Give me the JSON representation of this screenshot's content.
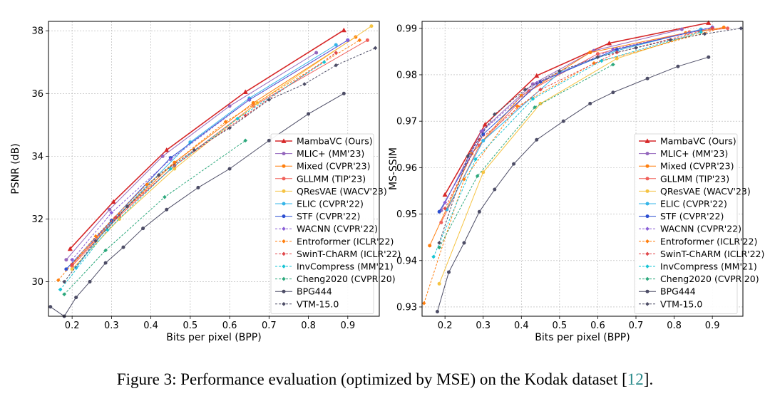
{
  "caption": {
    "prefix": "Figure 3: Performance evaluation (optimized by MSE) on the Kodak dataset [",
    "ref": "12",
    "suffix": "]."
  },
  "legend_series": [
    {
      "name": "MambaVC (Ours)",
      "color": "#d62728",
      "marker": "triangle",
      "dashed": false
    },
    {
      "name": "MLIC+ (MM'23)",
      "color": "#9467bd",
      "marker": "circle",
      "dashed": false
    },
    {
      "name": "Mixed (CVPR'23)",
      "color": "#ff7f0e",
      "marker": "circle",
      "dashed": false
    },
    {
      "name": "GLLMM (TIP'23)",
      "color": "#f0605a",
      "marker": "circle",
      "dashed": false
    },
    {
      "name": "QResVAE (WACV'23)",
      "color": "#f5c342",
      "marker": "circle",
      "dashed": false
    },
    {
      "name": "ELIC (CVPR'22)",
      "color": "#36b5e8",
      "marker": "circle",
      "dashed": false
    },
    {
      "name": "STF (CVPR'22)",
      "color": "#2c4fd1",
      "marker": "circle",
      "dashed": false
    },
    {
      "name": "WACNN (CVPR'22)",
      "color": "#8a5fd6",
      "marker": "diamond",
      "dashed": true
    },
    {
      "name": "Entroformer (ICLR'22)",
      "color": "#ff7f0e",
      "marker": "diamond",
      "dashed": true
    },
    {
      "name": "SwinT-ChARM (ICLR'22)",
      "color": "#e0484c",
      "marker": "diamond",
      "dashed": true
    },
    {
      "name": "InvCompress (MM'21)",
      "color": "#17c4d4",
      "marker": "diamond",
      "dashed": true
    },
    {
      "name": "Cheng2020 (CVPR'20)",
      "color": "#2ca87c",
      "marker": "diamond",
      "dashed": true
    },
    {
      "name": "BPG444",
      "color": "#4d4d66",
      "marker": "circle",
      "dashed": false
    },
    {
      "name": "VTM-15.0",
      "color": "#4d4d66",
      "marker": "diamond",
      "dashed": true
    }
  ],
  "chart_data": [
    {
      "type": "line",
      "xlabel": "Bits per pixel (BPP)",
      "ylabel": "PSNR (dB)",
      "xlim": [
        0.14,
        0.98
      ],
      "ylim": [
        28.9,
        38.3
      ],
      "xticks": [
        0.2,
        0.3,
        0.4,
        0.5,
        0.6,
        0.7,
        0.8,
        0.9
      ],
      "yticks": [
        30,
        32,
        34,
        36,
        38
      ],
      "grid": true,
      "legend_position": "bottom-right",
      "series": [
        {
          "name": "MambaVC (Ours)",
          "x": [
            0.195,
            0.305,
            0.44,
            0.64,
            0.89
          ],
          "y": [
            31.05,
            32.55,
            34.2,
            36.05,
            38.02
          ]
        },
        {
          "name": "MLIC+ (MM'23)",
          "x": [
            0.185,
            0.295,
            0.43,
            0.6,
            0.82
          ],
          "y": [
            30.7,
            32.3,
            34.0,
            35.6,
            37.3
          ]
        },
        {
          "name": "Mixed (CVPR'23)",
          "x": [
            0.2,
            0.32,
            0.46,
            0.66,
            0.92
          ],
          "y": [
            30.55,
            32.15,
            33.8,
            35.7,
            37.8
          ]
        },
        {
          "name": "GLLMM (TIP'23)",
          "x": [
            0.2,
            0.32,
            0.46,
            0.66,
            0.95
          ],
          "y": [
            30.5,
            32.1,
            33.7,
            35.6,
            37.7
          ]
        },
        {
          "name": "QResVAE (WACV'23)",
          "x": [
            0.2,
            0.32,
            0.46,
            0.67,
            0.96
          ],
          "y": [
            30.4,
            32.0,
            33.6,
            35.7,
            38.15
          ]
        },
        {
          "name": "ELIC (CVPR'22)",
          "x": [
            0.21,
            0.3,
            0.5,
            0.65,
            0.87
          ],
          "y": [
            30.45,
            31.9,
            34.45,
            35.85,
            37.55
          ]
        },
        {
          "name": "STF (CVPR'22)",
          "x": [
            0.185,
            0.3,
            0.45,
            0.65,
            0.9
          ],
          "y": [
            30.4,
            31.95,
            33.95,
            35.8,
            37.7
          ]
        },
        {
          "name": "WACNN (CVPR'22)",
          "x": [
            0.2,
            0.3,
            0.45,
            0.65,
            0.9
          ],
          "y": [
            30.7,
            32.2,
            33.9,
            35.8,
            37.7
          ]
        },
        {
          "name": "Entroformer (ICLR'22)",
          "x": [
            0.165,
            0.26,
            0.39,
            0.59,
            0.93
          ],
          "y": [
            30.05,
            31.45,
            33.1,
            35.1,
            37.7
          ]
        },
        {
          "name": "SwinT-ChARM (ICLR'22)",
          "x": [
            0.2,
            0.31,
            0.46,
            0.64,
            0.87
          ],
          "y": [
            30.55,
            32.05,
            33.7,
            35.3,
            37.3
          ]
        },
        {
          "name": "InvCompress (MM'21)",
          "x": [
            0.17,
            0.29,
            0.45,
            0.62,
            0.84
          ],
          "y": [
            29.75,
            31.65,
            33.6,
            35.2,
            37.0
          ]
        },
        {
          "name": "Cheng2020 (CVPR'20)",
          "x": [
            0.18,
            0.285,
            0.435,
            0.64
          ],
          "y": [
            29.6,
            31.0,
            32.7,
            34.5
          ]
        },
        {
          "name": "BPG444",
          "x": [
            0.145,
            0.18,
            0.21,
            0.245,
            0.285,
            0.33,
            0.38,
            0.44,
            0.52,
            0.6,
            0.7,
            0.8,
            0.89
          ],
          "y": [
            29.2,
            28.9,
            29.5,
            30.0,
            30.6,
            31.1,
            31.7,
            32.3,
            33.0,
            33.6,
            34.5,
            35.35,
            36.0
          ]
        },
        {
          "name": "VTM-15.0",
          "x": [
            0.18,
            0.26,
            0.34,
            0.42,
            0.51,
            0.6,
            0.7,
            0.79,
            0.87,
            0.97
          ],
          "y": [
            30.0,
            31.3,
            32.4,
            33.4,
            34.2,
            34.9,
            35.8,
            36.3,
            36.9,
            37.45
          ]
        }
      ]
    },
    {
      "type": "line",
      "xlabel": "Bits per pixel (BPP)",
      "ylabel": "MS-SSIM",
      "xlim": [
        0.14,
        0.98
      ],
      "ylim": [
        0.928,
        0.9915
      ],
      "xticks": [
        0.2,
        0.3,
        0.4,
        0.5,
        0.6,
        0.7,
        0.8,
        0.9
      ],
      "yticks": [
        0.93,
        0.94,
        0.95,
        0.96,
        0.97,
        0.98,
        0.99
      ],
      "grid": true,
      "legend_position": "bottom-right",
      "series": [
        {
          "name": "MambaVC (Ours)",
          "x": [
            0.2,
            0.305,
            0.44,
            0.63,
            0.89
          ],
          "y": [
            0.9542,
            0.9693,
            0.9798,
            0.9868,
            0.9912
          ]
        },
        {
          "name": "MLIC+ (MM'23)",
          "x": [
            0.19,
            0.295,
            0.43,
            0.59,
            0.82
          ],
          "y": [
            0.9508,
            0.9678,
            0.978,
            0.9852,
            0.9898
          ]
        },
        {
          "name": "Mixed (CVPR'23)",
          "x": [
            0.16,
            0.27,
            0.4,
            0.58,
            0.83,
            0.93
          ],
          "y": [
            0.9432,
            0.963,
            0.9755,
            0.9848,
            0.989,
            0.9902
          ]
        },
        {
          "name": "GLLMM (TIP'23)",
          "x": [
            0.19,
            0.29,
            0.42,
            0.6,
            0.84,
            0.94
          ],
          "y": [
            0.9482,
            0.9648,
            0.9765,
            0.9845,
            0.9892,
            0.99
          ]
        },
        {
          "name": "QResVAE (WACV'23)",
          "x": [
            0.185,
            0.3,
            0.45,
            0.65,
            0.9
          ],
          "y": [
            0.935,
            0.959,
            0.9738,
            0.9835,
            0.99
          ]
        },
        {
          "name": "ELIC (CVPR'22)",
          "x": [
            0.205,
            0.3,
            0.5,
            0.65,
            0.87
          ],
          "y": [
            0.951,
            0.9658,
            0.9805,
            0.9852,
            0.9898
          ]
        },
        {
          "name": "STF (CVPR'22)",
          "x": [
            0.185,
            0.3,
            0.45,
            0.65,
            0.9
          ],
          "y": [
            0.9505,
            0.9672,
            0.9785,
            0.9855,
            0.9902
          ]
        },
        {
          "name": "WACNN (CVPR'22)",
          "x": [
            0.2,
            0.3,
            0.44,
            0.64,
            0.9
          ],
          "y": [
            0.9525,
            0.968,
            0.9782,
            0.9855,
            0.9902
          ]
        },
        {
          "name": "Entroformer (ICLR'22)",
          "x": [
            0.145,
            0.25,
            0.39,
            0.59,
            0.93
          ],
          "y": [
            0.9308,
            0.9575,
            0.9732,
            0.9825,
            0.9902
          ]
        },
        {
          "name": "SwinT-ChARM (ICLR'22)",
          "x": [
            0.2,
            0.29,
            0.45,
            0.65,
            0.9
          ],
          "y": [
            0.9512,
            0.966,
            0.9768,
            0.9848,
            0.99
          ]
        },
        {
          "name": "InvCompress (MM'21)",
          "x": [
            0.17,
            0.28,
            0.43,
            0.61,
            0.87
          ],
          "y": [
            0.9408,
            0.9618,
            0.9748,
            0.983,
            0.9892
          ]
        },
        {
          "name": "Cheng2020 (CVPR'20)",
          "x": [
            0.185,
            0.285,
            0.435,
            0.64
          ],
          "y": [
            0.9428,
            0.9582,
            0.973,
            0.9822
          ]
        },
        {
          "name": "BPG444",
          "x": [
            0.18,
            0.21,
            0.25,
            0.29,
            0.33,
            0.38,
            0.44,
            0.51,
            0.58,
            0.64,
            0.73,
            0.81,
            0.89
          ],
          "y": [
            0.929,
            0.9375,
            0.9438,
            0.9505,
            0.9553,
            0.9608,
            0.966,
            0.97,
            0.9738,
            0.9762,
            0.9792,
            0.9818,
            0.9838
          ]
        },
        {
          "name": "VTM-15.0",
          "x": [
            0.185,
            0.26,
            0.33,
            0.41,
            0.5,
            0.6,
            0.7,
            0.79,
            0.88,
            0.975
          ],
          "y": [
            0.9438,
            0.9625,
            0.9715,
            0.9768,
            0.9808,
            0.9838,
            0.9858,
            0.9875,
            0.9888,
            0.99
          ]
        }
      ]
    }
  ]
}
